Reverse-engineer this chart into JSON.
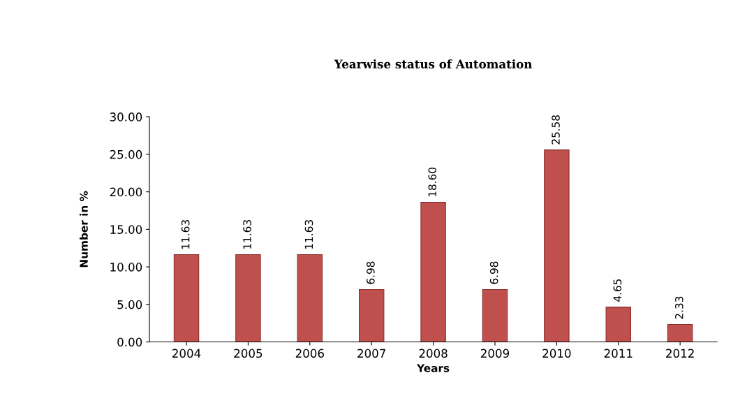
{
  "chart_data": {
    "type": "bar",
    "title": "Yearwise status of Automation",
    "xlabel": "Years",
    "ylabel": "Number in %",
    "categories": [
      "2004",
      "2005",
      "2006",
      "2007",
      "2008",
      "2009",
      "2010",
      "2011",
      "2012"
    ],
    "values": [
      11.63,
      11.63,
      11.63,
      6.98,
      18.6,
      6.98,
      25.58,
      4.65,
      2.33
    ],
    "value_labels": [
      "11.63",
      "11.63",
      "11.63",
      "6.98",
      "18.60",
      "6.98",
      "25.58",
      "4.65",
      "2.33"
    ],
    "color": "#c0504d",
    "ylim": [
      0,
      30
    ],
    "yticks": [
      {
        "value": 0,
        "label": "0.00"
      },
      {
        "value": 5,
        "label": "5.00"
      },
      {
        "value": 10,
        "label": "10.00"
      },
      {
        "value": 15,
        "label": "15.00"
      },
      {
        "value": 20,
        "label": "20.00"
      },
      {
        "value": 25,
        "label": "25.00"
      },
      {
        "value": 30,
        "label": "30.00"
      }
    ],
    "grid": false,
    "legend": false
  }
}
